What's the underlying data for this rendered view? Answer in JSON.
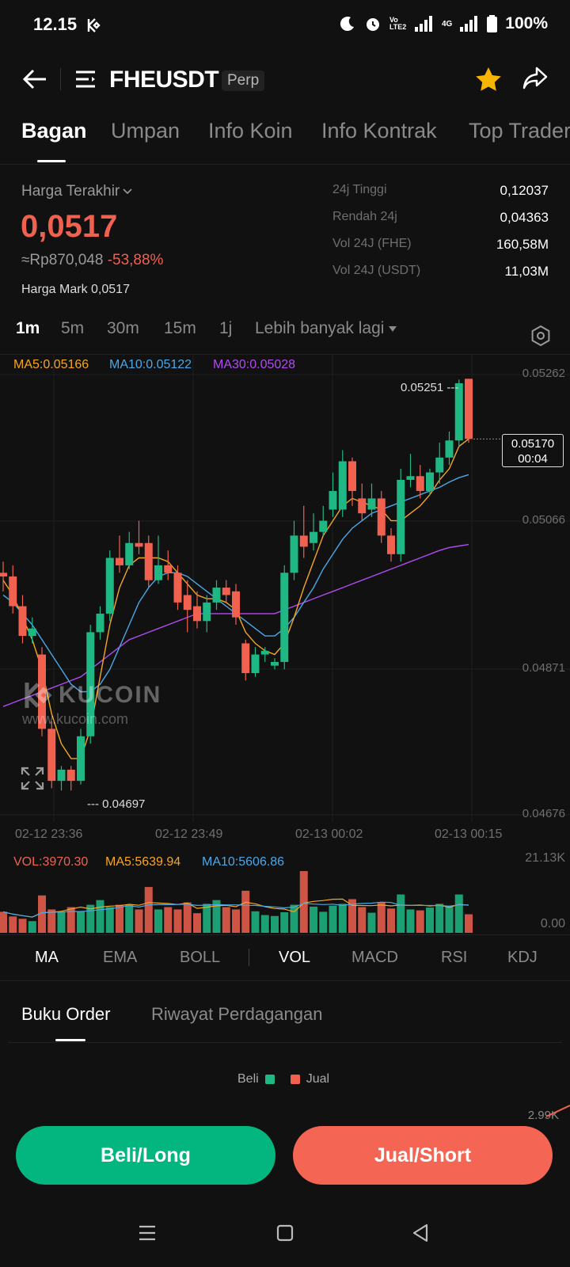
{
  "status_bar": {
    "time": "12.15",
    "network": "Vo LTE2",
    "network2": "4G",
    "battery": "100%"
  },
  "header": {
    "pair": "FHEUSDT",
    "contract_type": "Perp"
  },
  "tabs": [
    "Bagan",
    "Umpan",
    "Info Koin",
    "Info Kontrak",
    "Top Trader"
  ],
  "price": {
    "last_price_label": "Harga Terakhir",
    "last_price": "0,0517",
    "fiat_value": "≈Rp870,048",
    "change": "-53,88%",
    "mark_price": "Harga Mark 0,0517"
  },
  "stats": [
    {
      "label": "24j Tinggi",
      "value": "0,12037"
    },
    {
      "label": "Rendah 24j",
      "value": "0,04363"
    },
    {
      "label": "Vol 24J (FHE)",
      "value": "160,58M"
    },
    {
      "label": "Vol 24J (USDT)",
      "value": "11,03M"
    }
  ],
  "timeframes": [
    "1m",
    "5m",
    "30m",
    "15m",
    "1j",
    "Lebih banyak lagi"
  ],
  "ma_legend": {
    "ma5": "MA5:0.05166",
    "ma10": "MA10:0.05122",
    "ma30": "MA30:0.05028"
  },
  "colors": {
    "up": "#1fb884",
    "down": "#f0614f",
    "ma5": "#f5a623",
    "ma10": "#4aa8e8",
    "ma30": "#b04bf0",
    "buy_button": "#03b57f",
    "sell_button": "#f46554"
  },
  "chart_data": {
    "type": "candlestick",
    "price_axis": [
      "0.05262",
      "0.05066",
      "0.04871",
      "0.04676"
    ],
    "time_axis": [
      "02-12 23:36",
      "02-12 23:49",
      "02-13 00:02",
      "02-13 00:15"
    ],
    "high_label": "0.05251",
    "low_label": "0.04697",
    "current_price_tag": "0.05170",
    "countdown": "00:04",
    "ylim": [
      0.04676,
      0.05262
    ],
    "candles": [
      [
        0.0499,
        0.04985,
        0.05005,
        0.04965
      ],
      [
        0.04985,
        0.04945,
        0.05,
        0.04935
      ],
      [
        0.04945,
        0.04905,
        0.0496,
        0.04895
      ],
      [
        0.04905,
        0.04915,
        0.0493,
        0.04895
      ],
      [
        0.0488,
        0.0478,
        0.0489,
        0.0477
      ],
      [
        0.0478,
        0.0471,
        0.0479,
        0.047
      ],
      [
        0.0471,
        0.04725,
        0.0473,
        0.04697
      ],
      [
        0.04725,
        0.0471,
        0.0473,
        0.04697
      ],
      [
        0.0471,
        0.0477,
        0.0478,
        0.04705
      ],
      [
        0.0477,
        0.0491,
        0.0492,
        0.0476
      ],
      [
        0.0491,
        0.04935,
        0.04945,
        0.049
      ],
      [
        0.04935,
        0.0501,
        0.0502,
        0.04925
      ],
      [
        0.0501,
        0.05,
        0.0504,
        0.0499
      ],
      [
        0.05,
        0.0503,
        0.05045,
        0.04995
      ],
      [
        0.0503,
        0.05025,
        0.0506,
        0.05015
      ],
      [
        0.0503,
        0.0498,
        0.0504,
        0.0497
      ],
      [
        0.0498,
        0.05,
        0.0504,
        0.04975
      ],
      [
        0.05,
        0.0499,
        0.0502,
        0.0498
      ],
      [
        0.0499,
        0.0495,
        0.05,
        0.0494
      ],
      [
        0.0496,
        0.0494,
        0.0498,
        0.0491
      ],
      [
        0.04945,
        0.04925,
        0.04965,
        0.04915
      ],
      [
        0.04925,
        0.0495,
        0.0496,
        0.0491
      ],
      [
        0.0495,
        0.0497,
        0.0498,
        0.0494
      ],
      [
        0.0497,
        0.0496,
        0.0498,
        0.0495
      ],
      [
        0.04965,
        0.0493,
        0.04975,
        0.0492
      ],
      [
        0.04895,
        0.04855,
        0.049,
        0.04845
      ],
      [
        0.04855,
        0.0488,
        0.0489,
        0.0485
      ],
      [
        0.0488,
        0.04885,
        0.0489,
        0.0487
      ],
      [
        0.04865,
        0.0487,
        0.04875,
        0.0486
      ],
      [
        0.0487,
        0.0499,
        0.05,
        0.0486
      ],
      [
        0.0499,
        0.0504,
        0.0506,
        0.0498
      ],
      [
        0.0504,
        0.05025,
        0.0508,
        0.0501
      ],
      [
        0.0503,
        0.05045,
        0.0507,
        0.0502
      ],
      [
        0.05045,
        0.0506,
        0.0508,
        0.0504
      ],
      [
        0.05075,
        0.051,
        0.05125,
        0.05065
      ],
      [
        0.05075,
        0.0514,
        0.05155,
        0.05065
      ],
      [
        0.0514,
        0.051,
        0.05145,
        0.0508
      ],
      [
        0.0509,
        0.0507,
        0.0511,
        0.0506
      ],
      [
        0.05075,
        0.0509,
        0.0511,
        0.05065
      ],
      [
        0.0509,
        0.0504,
        0.051,
        0.0503
      ],
      [
        0.0504,
        0.05015,
        0.0505,
        0.05005
      ],
      [
        0.05015,
        0.05115,
        0.0513,
        0.05005
      ],
      [
        0.05115,
        0.0512,
        0.0515,
        0.05105
      ],
      [
        0.0512,
        0.051,
        0.05135,
        0.0509
      ],
      [
        0.051,
        0.05125,
        0.0513,
        0.05095
      ],
      [
        0.05125,
        0.05145,
        0.05165,
        0.0511
      ],
      [
        0.05145,
        0.05168,
        0.0518,
        0.05135
      ],
      [
        0.05168,
        0.05245,
        0.0525,
        0.0516
      ],
      [
        0.05251,
        0.0517,
        0.05251,
        0.05165
      ]
    ],
    "ma5": [
      0.0498,
      0.0496,
      0.0493,
      0.049,
      0.0486,
      0.048,
      0.0476,
      0.0474,
      0.0474,
      0.0478,
      0.0485,
      0.0492,
      0.0497,
      0.05,
      0.0501,
      0.0501,
      0.0501,
      0.05005,
      0.0499,
      0.04975,
      0.0496,
      0.04955,
      0.04955,
      0.0495,
      0.0494,
      0.0491,
      0.04895,
      0.04885,
      0.0488,
      0.04895,
      0.0493,
      0.0497,
      0.05005,
      0.0504,
      0.0506,
      0.0508,
      0.0509,
      0.05085,
      0.0508,
      0.05075,
      0.0506,
      0.0506,
      0.0507,
      0.0508,
      0.05095,
      0.05115,
      0.0513,
      0.0516,
      0.0517
    ],
    "ma10": [
      0.0496,
      0.0495,
      0.04935,
      0.0492,
      0.049,
      0.0488,
      0.0486,
      0.0484,
      0.0483,
      0.0483,
      0.0484,
      0.0486,
      0.0489,
      0.0492,
      0.0495,
      0.0497,
      0.04985,
      0.0499,
      0.0499,
      0.04985,
      0.04975,
      0.04965,
      0.04955,
      0.04945,
      0.04935,
      0.04925,
      0.04915,
      0.04905,
      0.04905,
      0.04915,
      0.0493,
      0.0495,
      0.0497,
      0.04995,
      0.05015,
      0.05035,
      0.0505,
      0.0506,
      0.0507,
      0.05075,
      0.0508,
      0.05085,
      0.0509,
      0.05095,
      0.051,
      0.05105,
      0.05112,
      0.05118,
      0.05122
    ],
    "ma30": [
      0.0481,
      0.04815,
      0.0482,
      0.04825,
      0.0483,
      0.04835,
      0.0484,
      0.04845,
      0.0485,
      0.0486,
      0.0487,
      0.0488,
      0.0489,
      0.049,
      0.04905,
      0.0491,
      0.04915,
      0.0492,
      0.04925,
      0.0493,
      0.04935,
      0.04935,
      0.04935,
      0.04935,
      0.04935,
      0.04935,
      0.04935,
      0.04935,
      0.04935,
      0.0494,
      0.04945,
      0.0495,
      0.04955,
      0.0496,
      0.04965,
      0.0497,
      0.04975,
      0.0498,
      0.04985,
      0.0499,
      0.04995,
      0.05,
      0.05005,
      0.0501,
      0.05015,
      0.0502,
      0.05024,
      0.05026,
      0.05028
    ]
  },
  "volume": {
    "vol_label": "VOL:3970.30",
    "ma5_label": "MA5:5639.94",
    "ma10_label": "MA10:5606.86",
    "axis_top": "21.13K",
    "axis_bottom": "0.00",
    "values": [
      4500,
      3500,
      3000,
      2500,
      8000,
      5000,
      4500,
      5500,
      4500,
      6000,
      7000,
      5500,
      6000,
      6000,
      5000,
      9800,
      5000,
      5500,
      5000,
      6500,
      4200,
      6200,
      7000,
      5500,
      5000,
      9000,
      4600,
      3800,
      3600,
      4400,
      6000,
      14000,
      5600,
      4500,
      5800,
      6200,
      7200,
      5500,
      4300,
      6600,
      5200,
      8200,
      5000,
      4800,
      5400,
      6200,
      5800,
      8200,
      3970
    ]
  },
  "indicators": {
    "main": [
      "MA",
      "EMA",
      "BOLL"
    ],
    "sub": [
      "VOL",
      "MACD",
      "RSI",
      "KDJ"
    ]
  },
  "order_book": {
    "tabs": [
      "Buku Order",
      "Riwayat Perdagangan"
    ],
    "legend_buy": "Beli",
    "legend_sell": "Jual",
    "depth_value": "2.99K"
  },
  "buttons": {
    "buy": "Beli/Long",
    "sell": "Jual/Short"
  },
  "watermark": {
    "brand": "KUCOIN",
    "url": "www.kucoin.com"
  }
}
